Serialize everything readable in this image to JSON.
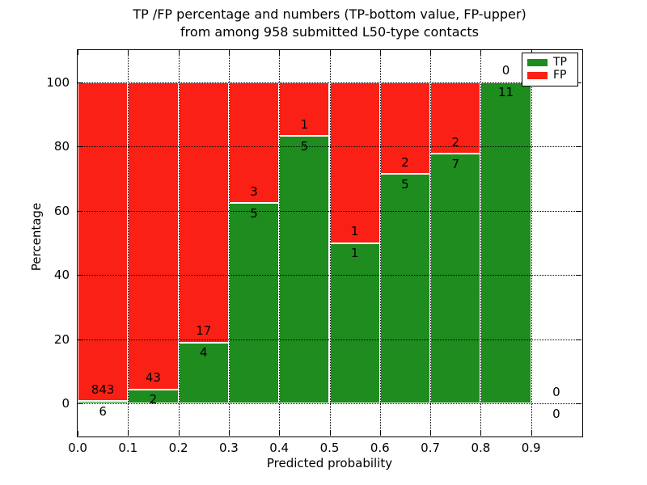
{
  "chart_data": {
    "type": "bar",
    "subtype": "stacked-percentage-histogram",
    "title_line1": "TP /FP percentage and numbers (TP-bottom value, FP-upper)",
    "title_line2": "from among 958 submitted L50-type contacts",
    "xlabel": "Predicted probability",
    "ylabel": "Percentage",
    "xlim": [
      0.0,
      1.0
    ],
    "ylim": [
      -10,
      110
    ],
    "x_tick_labels": [
      "0.0",
      "0.1",
      "0.2",
      "0.3",
      "0.4",
      "0.5",
      "0.6",
      "0.7",
      "0.8",
      "0.9"
    ],
    "y_tick_values": [
      0,
      20,
      40,
      60,
      80,
      100
    ],
    "grid": "dotted",
    "bin_edges": [
      0.0,
      0.1,
      0.2,
      0.3,
      0.4,
      0.5,
      0.6,
      0.7,
      0.8,
      0.9,
      1.0
    ],
    "categories": [
      "0.0-0.1",
      "0.1-0.2",
      "0.2-0.3",
      "0.3-0.4",
      "0.4-0.5",
      "0.5-0.6",
      "0.6-0.7",
      "0.7-0.8",
      "0.8-0.9",
      "0.9-1.0"
    ],
    "series": [
      {
        "name": "TP",
        "color": "#1e8c1e",
        "values": [
          6,
          2,
          4,
          5,
          5,
          1,
          5,
          7,
          11,
          0
        ]
      },
      {
        "name": "FP",
        "color": "#fb2015",
        "values": [
          843,
          43,
          17,
          3,
          1,
          1,
          2,
          2,
          0,
          0
        ]
      }
    ],
    "tp_percent_by_bin": [
      0.71,
      4.44,
      19.05,
      62.5,
      83.33,
      50.0,
      71.43,
      77.78,
      100.0,
      0.0
    ],
    "legend_position": "upper right",
    "annotation_note": "FP count printed above TP/FP boundary, TP count below"
  }
}
